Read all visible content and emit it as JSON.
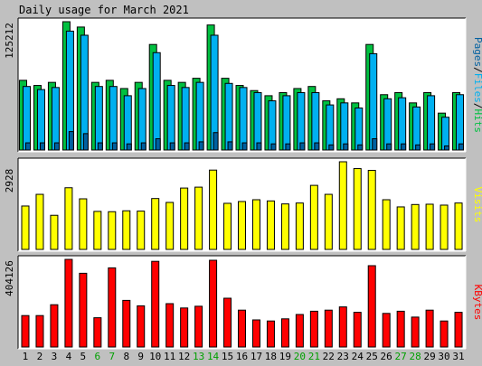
{
  "chart_data": {
    "type": "bar",
    "title": "Daily usage for March 2021",
    "categories": [
      "1",
      "2",
      "3",
      "4",
      "5",
      "6",
      "7",
      "8",
      "9",
      "10",
      "11",
      "12",
      "13",
      "14",
      "15",
      "16",
      "17",
      "18",
      "19",
      "20",
      "21",
      "22",
      "23",
      "24",
      "25",
      "26",
      "27",
      "28",
      "29",
      "30",
      "31"
    ],
    "weekend_days": [
      "6",
      "7",
      "13",
      "14",
      "20",
      "21",
      "27",
      "28"
    ],
    "panels": [
      {
        "id": "hits",
        "ymax_label": "125212",
        "ymax": 125212,
        "side_label": [
          "Pages",
          "/",
          "Files",
          "/",
          "Hits"
        ],
        "series": [
          {
            "name": "Hits",
            "color": "#00c040",
            "values": [
              68000,
              63000,
              66000,
              125212,
              120000,
              66000,
              68000,
              60000,
              66000,
              103000,
              68000,
              66000,
              70000,
              122000,
              70000,
              63000,
              58000,
              53000,
              56000,
              60000,
              62000,
              48000,
              50000,
              46000,
              103000,
              54000,
              56000,
              46000,
              56000,
              36000,
              56000
            ]
          },
          {
            "name": "Files",
            "color": "#00b0f0",
            "values": [
              62000,
              59000,
              61000,
              116000,
              112000,
              62000,
              62000,
              53000,
              60000,
              95000,
              63000,
              61000,
              66000,
              112000,
              65000,
              61000,
              56000,
              48000,
              53000,
              56000,
              56000,
              44000,
              46000,
              41000,
              94000,
              50000,
              51000,
              42000,
              53000,
              32000,
              54000
            ]
          },
          {
            "name": "Pages",
            "color": "#0060a0",
            "values": [
              7000,
              7000,
              7000,
              18000,
              16000,
              7000,
              7000,
              6000,
              7000,
              11000,
              7000,
              7000,
              8000,
              17000,
              8000,
              7000,
              7000,
              6000,
              6000,
              7000,
              7000,
              5000,
              6000,
              5000,
              11000,
              6000,
              6000,
              5000,
              6000,
              4000,
              6000
            ]
          }
        ]
      },
      {
        "id": "visits",
        "ymax_label": "2928",
        "ymax": 2928,
        "side_label": [
          "Visits"
        ],
        "series": [
          {
            "name": "Visits",
            "color": "#ffff00",
            "values": [
              1450,
              1840,
              1140,
              2060,
              1690,
              1270,
              1260,
              1290,
              1280,
              1700,
              1570,
              2050,
              2080,
              2650,
              1540,
              1600,
              1660,
              1620,
              1520,
              1550,
              2140,
              1840,
              2928,
              2700,
              2640,
              1660,
              1420,
              1500,
              1510,
              1480,
              1550
            ]
          }
        ]
      },
      {
        "id": "kbytes",
        "ymax_label": "404126",
        "ymax": 404126,
        "side_label": [
          "KBytes"
        ],
        "series": [
          {
            "name": "KBytes",
            "color": "#ff0000",
            "values": [
              145000,
              145000,
              195000,
              404126,
              340000,
              135000,
              365000,
              215000,
              190000,
              395000,
              200000,
              180000,
              188000,
              400000,
              225000,
              170000,
              125000,
              120000,
              130000,
              150000,
              165000,
              170000,
              185000,
              160000,
              375000,
              155000,
              165000,
              138000,
              170000,
              120000,
              160000
            ]
          }
        ]
      }
    ]
  },
  "colors": {
    "background": "#c0c0c0",
    "panel": "#ffffff",
    "weekday_label": "#000000",
    "weekend_label": "#00a000"
  }
}
